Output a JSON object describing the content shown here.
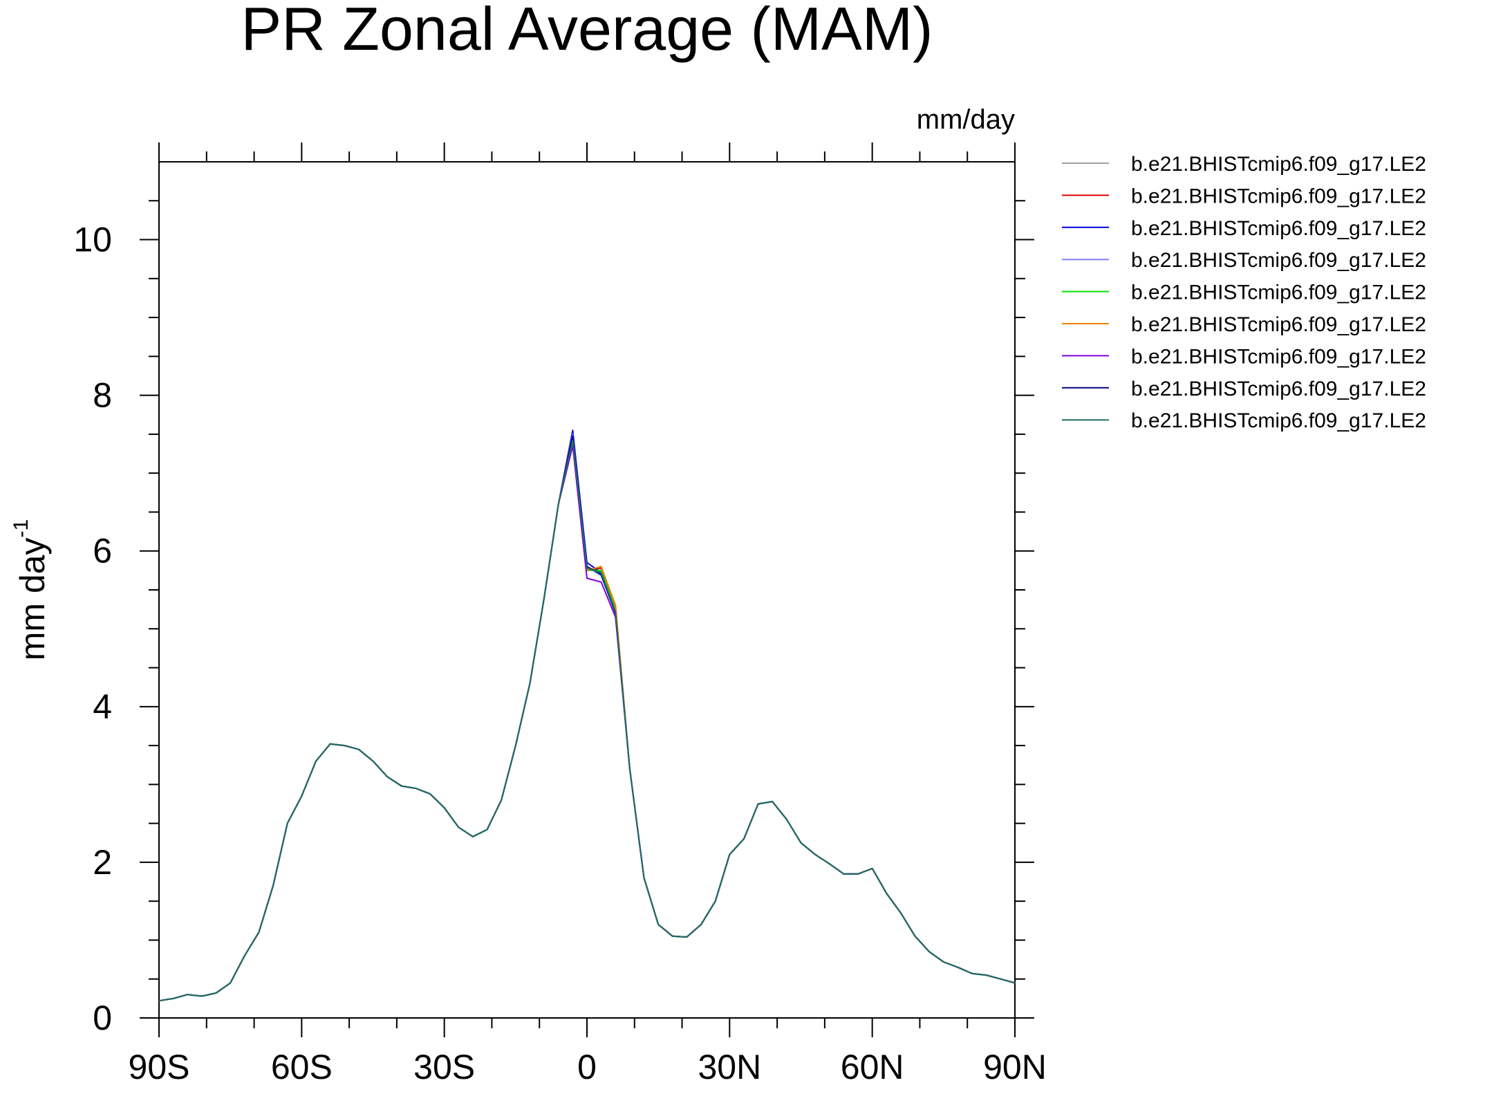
{
  "chart_data": {
    "type": "line",
    "title": "PR Zonal Average (MAM)",
    "units_label": "mm/day",
    "ylabel": "mm day",
    "ylabel_superscript": "-1",
    "x": [
      -90,
      -87,
      -84,
      -81,
      -78,
      -75,
      -72,
      -69,
      -66,
      -63,
      -60,
      -57,
      -54,
      -51,
      -48,
      -45,
      -42,
      -39,
      -36,
      -33,
      -30,
      -27,
      -24,
      -21,
      -18,
      -15,
      -12,
      -9,
      -6,
      -3,
      0,
      3,
      6,
      9,
      12,
      15,
      18,
      21,
      24,
      27,
      30,
      33,
      36,
      39,
      42,
      45,
      48,
      51,
      54,
      57,
      60,
      63,
      66,
      69,
      72,
      75,
      78,
      81,
      84,
      87,
      90
    ],
    "xlim": [
      -90,
      90
    ],
    "xticks": [
      {
        "value": -90,
        "label": "90S"
      },
      {
        "value": -60,
        "label": "60S"
      },
      {
        "value": -30,
        "label": "30S"
      },
      0,
      {
        "value": 30,
        "label": "30N"
      },
      {
        "value": 60,
        "label": "60N"
      },
      {
        "value": 90,
        "label": "90N"
      }
    ],
    "xminorticks": [
      -80,
      -70,
      -50,
      -40,
      -20,
      -10,
      10,
      20,
      40,
      50,
      70,
      80
    ],
    "ylim": [
      0,
      11
    ],
    "yticks": [
      0,
      2,
      4,
      6,
      8,
      10
    ],
    "yminorticks": [
      0.5,
      1,
      1.5,
      2.5,
      3,
      3.5,
      4.5,
      5,
      5.5,
      6.5,
      7,
      7.5,
      8.5,
      9,
      9.5,
      10.5
    ],
    "series": [
      {
        "name": "b.e21.BHISTcmip6.f09_g17.LE2",
        "color": "#a0a0a0",
        "values": [
          0.22,
          0.25,
          0.3,
          0.28,
          0.32,
          0.45,
          0.8,
          1.1,
          1.7,
          2.5,
          2.85,
          3.3,
          3.52,
          3.5,
          3.45,
          3.3,
          3.1,
          2.98,
          2.95,
          2.88,
          2.7,
          2.45,
          2.33,
          2.42,
          2.8,
          3.5,
          4.3,
          5.4,
          6.6,
          7.4,
          5.8,
          5.7,
          5.2,
          3.2,
          1.8,
          1.2,
          1.05,
          1.04,
          1.2,
          1.5,
          2.1,
          2.3,
          2.75,
          2.78,
          2.55,
          2.25,
          2.1,
          1.98,
          1.85,
          1.85,
          1.92,
          1.6,
          1.35,
          1.05,
          0.85,
          0.72,
          0.65,
          0.57,
          0.55,
          0.5,
          0.45
        ]
      },
      {
        "name": "b.e21.BHISTcmip6.f09_g17.LE2",
        "color": "#e00000",
        "values": [
          0.22,
          0.25,
          0.3,
          0.28,
          0.32,
          0.45,
          0.8,
          1.1,
          1.7,
          2.5,
          2.85,
          3.3,
          3.52,
          3.5,
          3.45,
          3.3,
          3.1,
          2.98,
          2.95,
          2.88,
          2.7,
          2.45,
          2.33,
          2.42,
          2.8,
          3.5,
          4.3,
          5.4,
          6.6,
          7.38,
          5.75,
          5.78,
          5.3,
          3.2,
          1.8,
          1.2,
          1.05,
          1.04,
          1.2,
          1.5,
          2.1,
          2.3,
          2.75,
          2.78,
          2.55,
          2.25,
          2.1,
          1.98,
          1.85,
          1.85,
          1.92,
          1.6,
          1.35,
          1.05,
          0.85,
          0.72,
          0.65,
          0.57,
          0.55,
          0.5,
          0.45
        ]
      },
      {
        "name": "b.e21.BHISTcmip6.f09_g17.LE2",
        "color": "#0000e0",
        "values": [
          0.22,
          0.25,
          0.3,
          0.28,
          0.32,
          0.45,
          0.8,
          1.1,
          1.7,
          2.5,
          2.85,
          3.3,
          3.52,
          3.5,
          3.45,
          3.3,
          3.1,
          2.98,
          2.95,
          2.88,
          2.7,
          2.45,
          2.33,
          2.42,
          2.8,
          3.5,
          4.3,
          5.4,
          6.6,
          7.55,
          5.85,
          5.72,
          5.2,
          3.2,
          1.8,
          1.2,
          1.05,
          1.04,
          1.2,
          1.5,
          2.1,
          2.3,
          2.75,
          2.78,
          2.55,
          2.25,
          2.1,
          1.98,
          1.85,
          1.85,
          1.92,
          1.6,
          1.35,
          1.05,
          0.85,
          0.72,
          0.65,
          0.57,
          0.55,
          0.5,
          0.45
        ]
      },
      {
        "name": "b.e21.BHISTcmip6.f09_g17.LE2",
        "color": "#8080ff",
        "values": [
          0.22,
          0.25,
          0.3,
          0.28,
          0.32,
          0.45,
          0.8,
          1.1,
          1.7,
          2.5,
          2.85,
          3.3,
          3.52,
          3.5,
          3.45,
          3.3,
          3.1,
          2.98,
          2.95,
          2.88,
          2.7,
          2.45,
          2.33,
          2.42,
          2.8,
          3.5,
          4.3,
          5.4,
          6.6,
          7.5,
          5.8,
          5.68,
          5.2,
          3.2,
          1.8,
          1.2,
          1.05,
          1.04,
          1.2,
          1.5,
          2.1,
          2.3,
          2.75,
          2.78,
          2.55,
          2.25,
          2.1,
          1.98,
          1.85,
          1.85,
          1.92,
          1.6,
          1.35,
          1.05,
          0.85,
          0.72,
          0.65,
          0.57,
          0.55,
          0.5,
          0.45
        ]
      },
      {
        "name": "b.e21.BHISTcmip6.f09_g17.LE2",
        "color": "#00e000",
        "values": [
          0.22,
          0.25,
          0.3,
          0.28,
          0.32,
          0.45,
          0.8,
          1.1,
          1.7,
          2.5,
          2.85,
          3.3,
          3.52,
          3.5,
          3.45,
          3.3,
          3.1,
          2.98,
          2.95,
          2.88,
          2.7,
          2.45,
          2.33,
          2.42,
          2.8,
          3.5,
          4.3,
          5.4,
          6.6,
          7.45,
          5.75,
          5.75,
          5.25,
          3.2,
          1.8,
          1.2,
          1.05,
          1.04,
          1.2,
          1.5,
          2.1,
          2.3,
          2.75,
          2.78,
          2.55,
          2.25,
          2.1,
          1.98,
          1.85,
          1.85,
          1.92,
          1.6,
          1.35,
          1.05,
          0.85,
          0.72,
          0.65,
          0.57,
          0.55,
          0.5,
          0.45
        ]
      },
      {
        "name": "b.e21.BHISTcmip6.f09_g17.LE2",
        "color": "#f08000",
        "values": [
          0.22,
          0.25,
          0.3,
          0.28,
          0.32,
          0.45,
          0.8,
          1.1,
          1.7,
          2.5,
          2.85,
          3.3,
          3.52,
          3.5,
          3.45,
          3.3,
          3.1,
          2.98,
          2.95,
          2.88,
          2.7,
          2.45,
          2.33,
          2.42,
          2.8,
          3.5,
          4.3,
          5.4,
          6.6,
          7.4,
          5.75,
          5.8,
          5.3,
          3.2,
          1.8,
          1.2,
          1.05,
          1.04,
          1.2,
          1.5,
          2.1,
          2.3,
          2.75,
          2.78,
          2.55,
          2.25,
          2.1,
          1.98,
          1.85,
          1.85,
          1.92,
          1.6,
          1.35,
          1.05,
          0.85,
          0.72,
          0.65,
          0.57,
          0.55,
          0.5,
          0.45
        ]
      },
      {
        "name": "b.e21.BHISTcmip6.f09_g17.LE2",
        "color": "#8000e0",
        "values": [
          0.22,
          0.25,
          0.3,
          0.28,
          0.32,
          0.45,
          0.8,
          1.1,
          1.7,
          2.5,
          2.85,
          3.3,
          3.52,
          3.5,
          3.45,
          3.3,
          3.1,
          2.98,
          2.95,
          2.88,
          2.7,
          2.45,
          2.33,
          2.42,
          2.8,
          3.5,
          4.3,
          5.4,
          6.6,
          7.35,
          5.65,
          5.6,
          5.15,
          3.2,
          1.8,
          1.2,
          1.05,
          1.04,
          1.2,
          1.5,
          2.1,
          2.3,
          2.75,
          2.78,
          2.55,
          2.25,
          2.1,
          1.98,
          1.85,
          1.85,
          1.92,
          1.6,
          1.35,
          1.05,
          0.85,
          0.72,
          0.65,
          0.57,
          0.55,
          0.5,
          0.45
        ]
      },
      {
        "name": "b.e21.BHISTcmip6.f09_g17.LE2",
        "color": "#000080",
        "values": [
          0.22,
          0.25,
          0.3,
          0.28,
          0.32,
          0.45,
          0.8,
          1.1,
          1.7,
          2.5,
          2.85,
          3.3,
          3.52,
          3.5,
          3.45,
          3.3,
          3.1,
          2.98,
          2.95,
          2.88,
          2.7,
          2.45,
          2.33,
          2.42,
          2.8,
          3.5,
          4.3,
          5.4,
          6.6,
          7.48,
          5.8,
          5.7,
          5.2,
          3.2,
          1.8,
          1.2,
          1.05,
          1.04,
          1.2,
          1.5,
          2.1,
          2.3,
          2.75,
          2.78,
          2.55,
          2.25,
          2.1,
          1.98,
          1.85,
          1.85,
          1.92,
          1.6,
          1.35,
          1.05,
          0.85,
          0.72,
          0.65,
          0.57,
          0.55,
          0.5,
          0.45
        ]
      },
      {
        "name": "b.e21.BHISTcmip6.f09_g17.LE2",
        "color": "#207060",
        "values": [
          0.22,
          0.25,
          0.3,
          0.28,
          0.32,
          0.45,
          0.8,
          1.1,
          1.7,
          2.5,
          2.85,
          3.3,
          3.52,
          3.5,
          3.45,
          3.3,
          3.1,
          2.98,
          2.95,
          2.88,
          2.7,
          2.45,
          2.33,
          2.42,
          2.8,
          3.5,
          4.3,
          5.4,
          6.6,
          7.42,
          5.78,
          5.72,
          5.22,
          3.2,
          1.8,
          1.2,
          1.05,
          1.04,
          1.2,
          1.5,
          2.1,
          2.3,
          2.75,
          2.78,
          2.55,
          2.25,
          2.1,
          1.98,
          1.85,
          1.85,
          1.92,
          1.6,
          1.35,
          1.05,
          0.85,
          0.72,
          0.65,
          0.57,
          0.55,
          0.5,
          0.45
        ]
      }
    ]
  }
}
